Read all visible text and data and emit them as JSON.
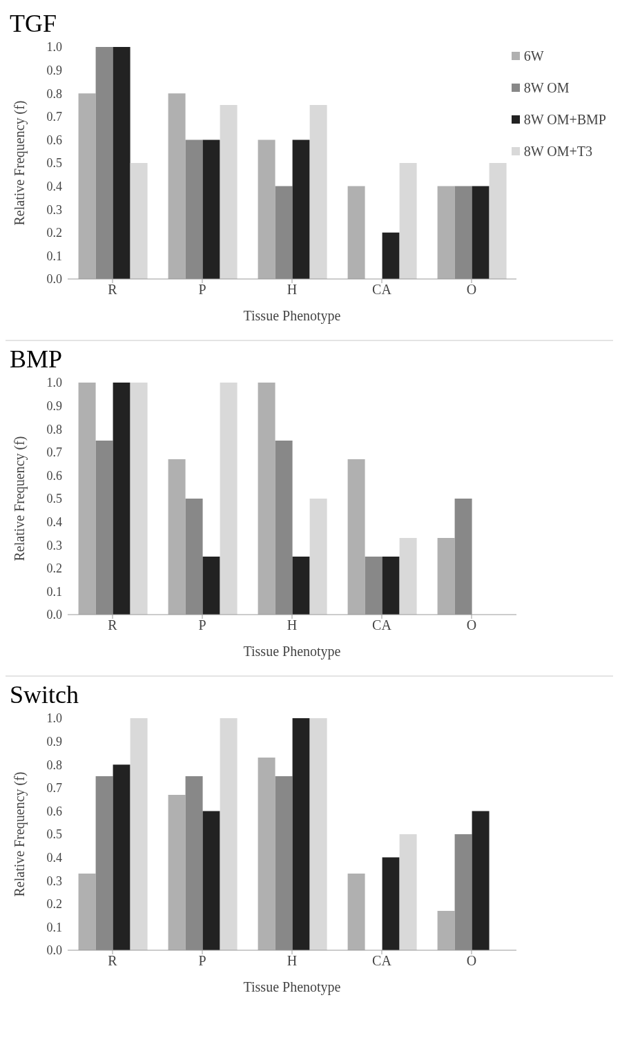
{
  "chart_data": [
    {
      "type": "bar",
      "title": "TGF",
      "xlabel": "Tissue Phenotype",
      "ylabel": "Relative Frequency (f)",
      "categories": [
        "R",
        "P",
        "H",
        "CA",
        "O"
      ],
      "ylim": [
        0,
        1
      ],
      "yticks": [
        {
          "value": 0,
          "label": "0.0"
        },
        {
          "value": 0.1,
          "label": "0.1"
        },
        {
          "value": 0.2,
          "label": "0.2"
        },
        {
          "value": 0.3,
          "label": "0.3"
        },
        {
          "value": 0.4,
          "label": "0.4"
        },
        {
          "value": 0.5,
          "label": "0.5"
        },
        {
          "value": 0.6,
          "label": "0.6"
        },
        {
          "value": 0.7,
          "label": "0.7"
        },
        {
          "value": 0.8,
          "label": "0.8"
        },
        {
          "value": 0.9,
          "label": "0.9"
        },
        {
          "value": 1,
          "label": "1.0"
        }
      ],
      "grid": false,
      "legend": "top right",
      "series": [
        {
          "name": "6W",
          "color": "#b0b0b0",
          "values": [
            0.8,
            0.8,
            0.6,
            0.4,
            0.4
          ]
        },
        {
          "name": "8W OM",
          "color": "#888888",
          "values": [
            1,
            0.6,
            0.4,
            0,
            0.4
          ]
        },
        {
          "name": "8W OM+BMP",
          "color": "#222222",
          "values": [
            1,
            0.6,
            0.6,
            0.2,
            0.4
          ]
        },
        {
          "name": "8W OM+T3",
          "color": "#d9d9d9",
          "values": [
            0.5,
            0.75,
            0.75,
            0.5,
            0.5
          ]
        }
      ]
    },
    {
      "type": "bar",
      "title": "BMP",
      "xlabel": "Tissue Phenotype",
      "ylabel": "Relative Frequency (f)",
      "categories": [
        "R",
        "P",
        "H",
        "CA",
        "O"
      ],
      "ylim": [
        0,
        1
      ],
      "yticks": [
        {
          "value": 0,
          "label": "0.0"
        },
        {
          "value": 0.1,
          "label": "0.1"
        },
        {
          "value": 0.2,
          "label": "0.2"
        },
        {
          "value": 0.3,
          "label": "0.3"
        },
        {
          "value": 0.4,
          "label": "0.4"
        },
        {
          "value": 0.5,
          "label": "0.5"
        },
        {
          "value": 0.6,
          "label": "0.6"
        },
        {
          "value": 0.7,
          "label": "0.7"
        },
        {
          "value": 0.8,
          "label": "0.8"
        },
        {
          "value": 0.9,
          "label": "0.9"
        },
        {
          "value": 1,
          "label": "1.0"
        }
      ],
      "grid": false,
      "legend": false,
      "series": [
        {
          "color": "#b0b0b0",
          "values": [
            1,
            0.67,
            1,
            0.67,
            0.33
          ]
        },
        {
          "color": "#888888",
          "values": [
            0.75,
            0.5,
            0.75,
            0.25,
            0.5
          ]
        },
        {
          "color": "#222222",
          "values": [
            1,
            0.25,
            0.25,
            0.25,
            0
          ]
        },
        {
          "color": "#d9d9d9",
          "values": [
            1,
            1,
            0.5,
            0.33,
            0
          ]
        }
      ]
    },
    {
      "type": "bar",
      "title": "Switch",
      "xlabel": "Tissue Phenotype",
      "ylabel": "Relative Frequency (f)",
      "categories": [
        "R",
        "P",
        "H",
        "CA",
        "O"
      ],
      "ylim": [
        0,
        1
      ],
      "yticks": [
        {
          "value": 0,
          "label": "0.0"
        },
        {
          "value": 0.1,
          "label": "0.1"
        },
        {
          "value": 0.2,
          "label": "0.2"
        },
        {
          "value": 0.3,
          "label": "0.3"
        },
        {
          "value": 0.4,
          "label": "0.4"
        },
        {
          "value": 0.5,
          "label": "0.5"
        },
        {
          "value": 0.6,
          "label": "0.6"
        },
        {
          "value": 0.7,
          "label": "0.7"
        },
        {
          "value": 0.8,
          "label": "0.8"
        },
        {
          "value": 0.9,
          "label": "0.9"
        },
        {
          "value": 1,
          "label": "1.0"
        }
      ],
      "grid": false,
      "legend": false,
      "series": [
        {
          "color": "#b0b0b0",
          "values": [
            0.33,
            0.67,
            0.83,
            0.33,
            0.17
          ]
        },
        {
          "color": "#888888",
          "values": [
            0.75,
            0.75,
            0.75,
            0,
            0.5
          ]
        },
        {
          "color": "#222222",
          "values": [
            0.8,
            0.6,
            1,
            0.4,
            0.6
          ]
        },
        {
          "color": "#d9d9d9",
          "values": [
            1,
            1,
            1,
            0.5,
            0
          ]
        }
      ]
    }
  ]
}
